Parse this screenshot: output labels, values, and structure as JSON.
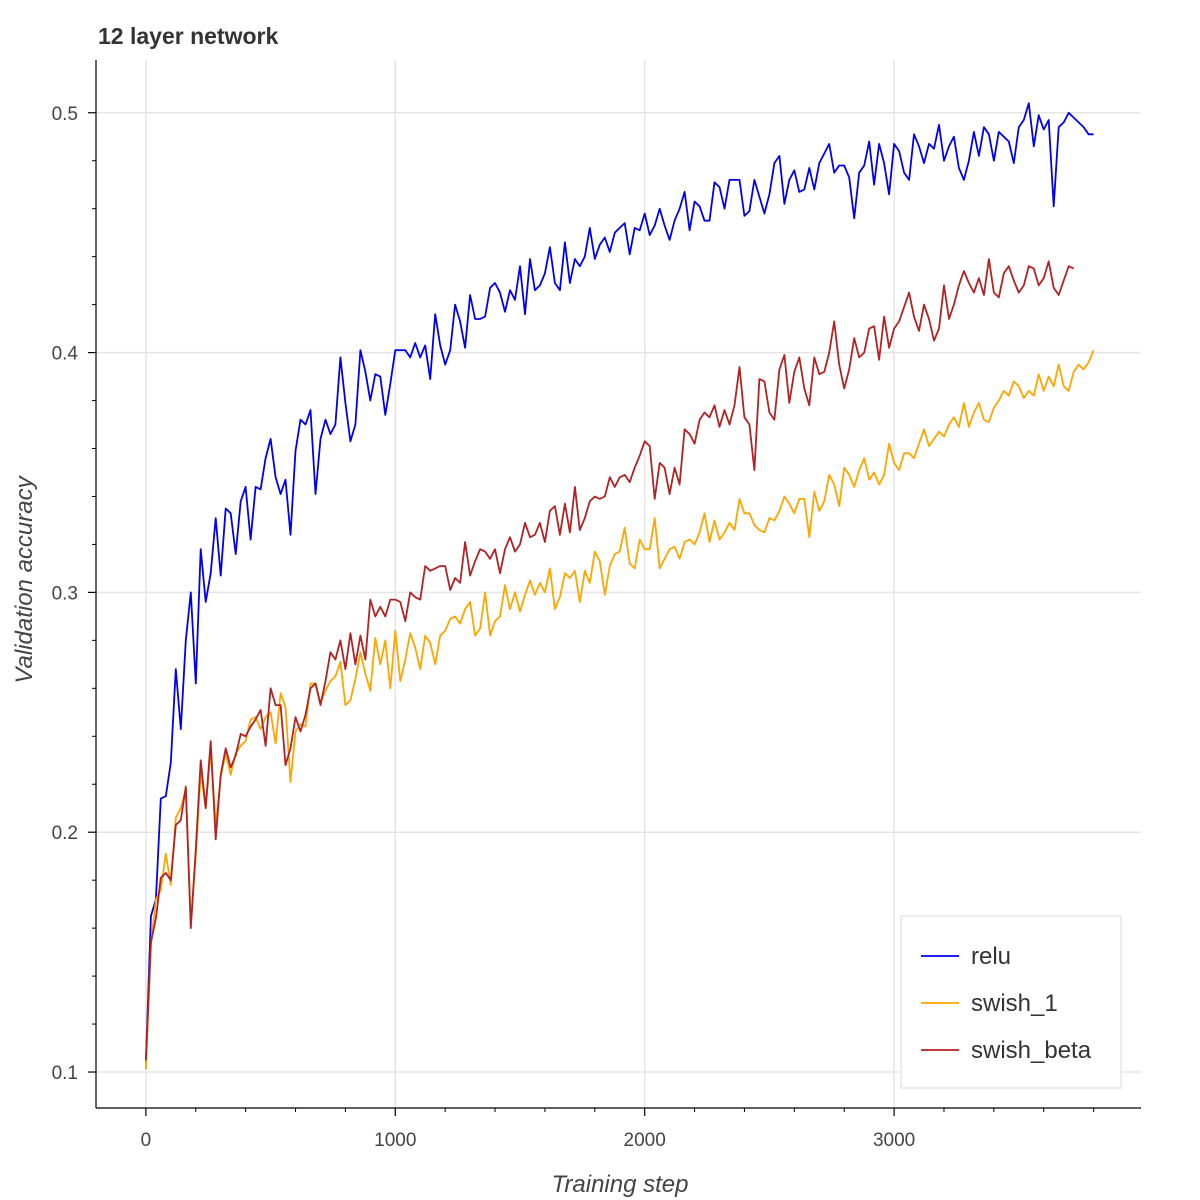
{
  "chart_data": {
    "type": "line",
    "title": "12 layer network",
    "xlabel": "Training step",
    "ylabel": "Validation accuracy",
    "xlim": [
      -200,
      3990
    ],
    "ylim": [
      0.085,
      0.522
    ],
    "xticks": [
      0,
      1000,
      2000,
      3000
    ],
    "xtick_labels": [
      "0",
      "1000",
      "2000",
      "3000"
    ],
    "yticks": [
      0.1,
      0.2,
      0.3,
      0.4,
      0.5
    ],
    "ytick_labels": [
      "0.1",
      "0.2",
      "0.3",
      "0.4",
      "0.5"
    ],
    "grid": true,
    "legend_position": "bottom-right",
    "x_start": 0,
    "x_step": 20,
    "series": [
      {
        "name": "relu",
        "color": "#0000ee",
        "values": [
          0.104,
          0.165,
          0.172,
          0.214,
          0.215,
          0.229,
          0.268,
          0.243,
          0.28,
          0.3,
          0.262,
          0.318,
          0.296,
          0.308,
          0.331,
          0.307,
          0.335,
          0.333,
          0.316,
          0.338,
          0.344,
          0.322,
          0.344,
          0.343,
          0.356,
          0.364,
          0.348,
          0.341,
          0.347,
          0.324,
          0.359,
          0.372,
          0.37,
          0.376,
          0.341,
          0.364,
          0.372,
          0.366,
          0.37,
          0.398,
          0.379,
          0.363,
          0.37,
          0.401,
          0.392,
          0.38,
          0.391,
          0.39,
          0.374,
          0.387,
          0.401,
          0.401,
          0.401,
          0.398,
          0.404,
          0.398,
          0.403,
          0.389,
          0.416,
          0.403,
          0.395,
          0.401,
          0.42,
          0.413,
          0.402,
          0.424,
          0.414,
          0.414,
          0.415,
          0.427,
          0.429,
          0.425,
          0.417,
          0.426,
          0.422,
          0.436,
          0.416,
          0.439,
          0.426,
          0.428,
          0.433,
          0.444,
          0.429,
          0.426,
          0.446,
          0.429,
          0.439,
          0.436,
          0.44,
          0.452,
          0.439,
          0.445,
          0.448,
          0.442,
          0.45,
          0.452,
          0.454,
          0.441,
          0.452,
          0.451,
          0.458,
          0.449,
          0.453,
          0.46,
          0.453,
          0.447,
          0.455,
          0.46,
          0.467,
          0.451,
          0.463,
          0.461,
          0.455,
          0.455,
          0.471,
          0.469,
          0.46,
          0.472,
          0.472,
          0.472,
          0.457,
          0.459,
          0.472,
          0.465,
          0.458,
          0.466,
          0.479,
          0.482,
          0.462,
          0.472,
          0.476,
          0.467,
          0.468,
          0.477,
          0.468,
          0.479,
          0.483,
          0.487,
          0.475,
          0.478,
          0.478,
          0.473,
          0.456,
          0.475,
          0.478,
          0.488,
          0.47,
          0.487,
          0.479,
          0.466,
          0.487,
          0.484,
          0.475,
          0.472,
          0.491,
          0.486,
          0.479,
          0.487,
          0.485,
          0.495,
          0.48,
          0.486,
          0.49,
          0.477,
          0.472,
          0.48,
          0.492,
          0.482,
          0.494,
          0.491,
          0.48,
          0.492,
          0.49,
          0.488,
          0.479,
          0.494,
          0.497,
          0.504,
          0.486,
          0.499,
          0.493,
          0.497,
          0.461,
          0.494,
          0.496,
          0.5,
          0.498,
          0.496,
          0.494,
          0.491,
          0.491
        ]
      },
      {
        "name": "swish_1",
        "color": "#ffa500",
        "values": [
          0.101,
          0.153,
          0.172,
          0.176,
          0.191,
          0.178,
          0.206,
          0.21,
          0.218,
          0.162,
          0.19,
          0.225,
          0.21,
          0.234,
          0.203,
          0.223,
          0.233,
          0.224,
          0.233,
          0.236,
          0.238,
          0.247,
          0.248,
          0.243,
          0.248,
          0.25,
          0.237,
          0.258,
          0.252,
          0.221,
          0.242,
          0.245,
          0.244,
          0.262,
          0.262,
          0.254,
          0.259,
          0.263,
          0.265,
          0.271,
          0.253,
          0.255,
          0.264,
          0.275,
          0.266,
          0.259,
          0.281,
          0.27,
          0.28,
          0.26,
          0.284,
          0.263,
          0.272,
          0.283,
          0.277,
          0.268,
          0.282,
          0.279,
          0.27,
          0.282,
          0.284,
          0.289,
          0.29,
          0.287,
          0.293,
          0.296,
          0.282,
          0.285,
          0.3,
          0.282,
          0.288,
          0.29,
          0.303,
          0.293,
          0.3,
          0.292,
          0.299,
          0.305,
          0.299,
          0.304,
          0.3,
          0.31,
          0.293,
          0.298,
          0.308,
          0.306,
          0.309,
          0.296,
          0.309,
          0.304,
          0.317,
          0.313,
          0.299,
          0.311,
          0.316,
          0.317,
          0.327,
          0.312,
          0.31,
          0.322,
          0.318,
          0.318,
          0.331,
          0.31,
          0.314,
          0.318,
          0.319,
          0.314,
          0.321,
          0.322,
          0.32,
          0.325,
          0.333,
          0.321,
          0.33,
          0.322,
          0.325,
          0.329,
          0.326,
          0.339,
          0.333,
          0.333,
          0.328,
          0.326,
          0.325,
          0.331,
          0.33,
          0.334,
          0.34,
          0.337,
          0.333,
          0.339,
          0.339,
          0.323,
          0.342,
          0.334,
          0.338,
          0.349,
          0.345,
          0.336,
          0.352,
          0.349,
          0.344,
          0.351,
          0.356,
          0.347,
          0.35,
          0.345,
          0.349,
          0.362,
          0.354,
          0.351,
          0.358,
          0.358,
          0.356,
          0.362,
          0.368,
          0.361,
          0.364,
          0.367,
          0.365,
          0.37,
          0.373,
          0.369,
          0.379,
          0.369,
          0.375,
          0.379,
          0.372,
          0.371,
          0.377,
          0.38,
          0.384,
          0.382,
          0.388,
          0.386,
          0.381,
          0.384,
          0.382,
          0.391,
          0.384,
          0.39,
          0.386,
          0.395,
          0.386,
          0.384,
          0.392,
          0.395,
          0.393,
          0.396,
          0.401
        ]
      },
      {
        "name": "swish_beta",
        "color": "#b22222",
        "values": [
          0.105,
          0.154,
          0.164,
          0.181,
          0.183,
          0.18,
          0.203,
          0.205,
          0.219,
          0.16,
          0.193,
          0.23,
          0.21,
          0.238,
          0.197,
          0.224,
          0.235,
          0.227,
          0.232,
          0.241,
          0.24,
          0.244,
          0.247,
          0.251,
          0.236,
          0.26,
          0.253,
          0.253,
          0.228,
          0.235,
          0.248,
          0.242,
          0.249,
          0.26,
          0.262,
          0.253,
          0.263,
          0.275,
          0.272,
          0.28,
          0.268,
          0.283,
          0.27,
          0.282,
          0.272,
          0.297,
          0.29,
          0.294,
          0.29,
          0.297,
          0.297,
          0.296,
          0.288,
          0.3,
          0.298,
          0.297,
          0.311,
          0.309,
          0.31,
          0.311,
          0.311,
          0.301,
          0.306,
          0.304,
          0.321,
          0.307,
          0.313,
          0.318,
          0.317,
          0.314,
          0.318,
          0.308,
          0.318,
          0.323,
          0.317,
          0.32,
          0.329,
          0.323,
          0.324,
          0.329,
          0.321,
          0.334,
          0.336,
          0.324,
          0.337,
          0.325,
          0.344,
          0.326,
          0.331,
          0.338,
          0.34,
          0.339,
          0.34,
          0.348,
          0.344,
          0.348,
          0.349,
          0.346,
          0.352,
          0.357,
          0.363,
          0.361,
          0.339,
          0.354,
          0.352,
          0.341,
          0.352,
          0.345,
          0.368,
          0.366,
          0.362,
          0.372,
          0.375,
          0.373,
          0.378,
          0.369,
          0.376,
          0.37,
          0.378,
          0.394,
          0.373,
          0.37,
          0.351,
          0.389,
          0.388,
          0.375,
          0.372,
          0.393,
          0.399,
          0.379,
          0.392,
          0.398,
          0.385,
          0.378,
          0.398,
          0.391,
          0.392,
          0.4,
          0.413,
          0.395,
          0.385,
          0.393,
          0.406,
          0.398,
          0.4,
          0.41,
          0.411,
          0.397,
          0.415,
          0.402,
          0.41,
          0.413,
          0.419,
          0.425,
          0.415,
          0.409,
          0.42,
          0.414,
          0.405,
          0.41,
          0.428,
          0.414,
          0.42,
          0.428,
          0.434,
          0.429,
          0.425,
          0.431,
          0.424,
          0.439,
          0.425,
          0.423,
          0.433,
          0.436,
          0.43,
          0.425,
          0.428,
          0.436,
          0.435,
          0.428,
          0.431,
          0.438,
          0.427,
          0.424,
          0.43,
          0.436,
          0.435
        ]
      }
    ]
  }
}
